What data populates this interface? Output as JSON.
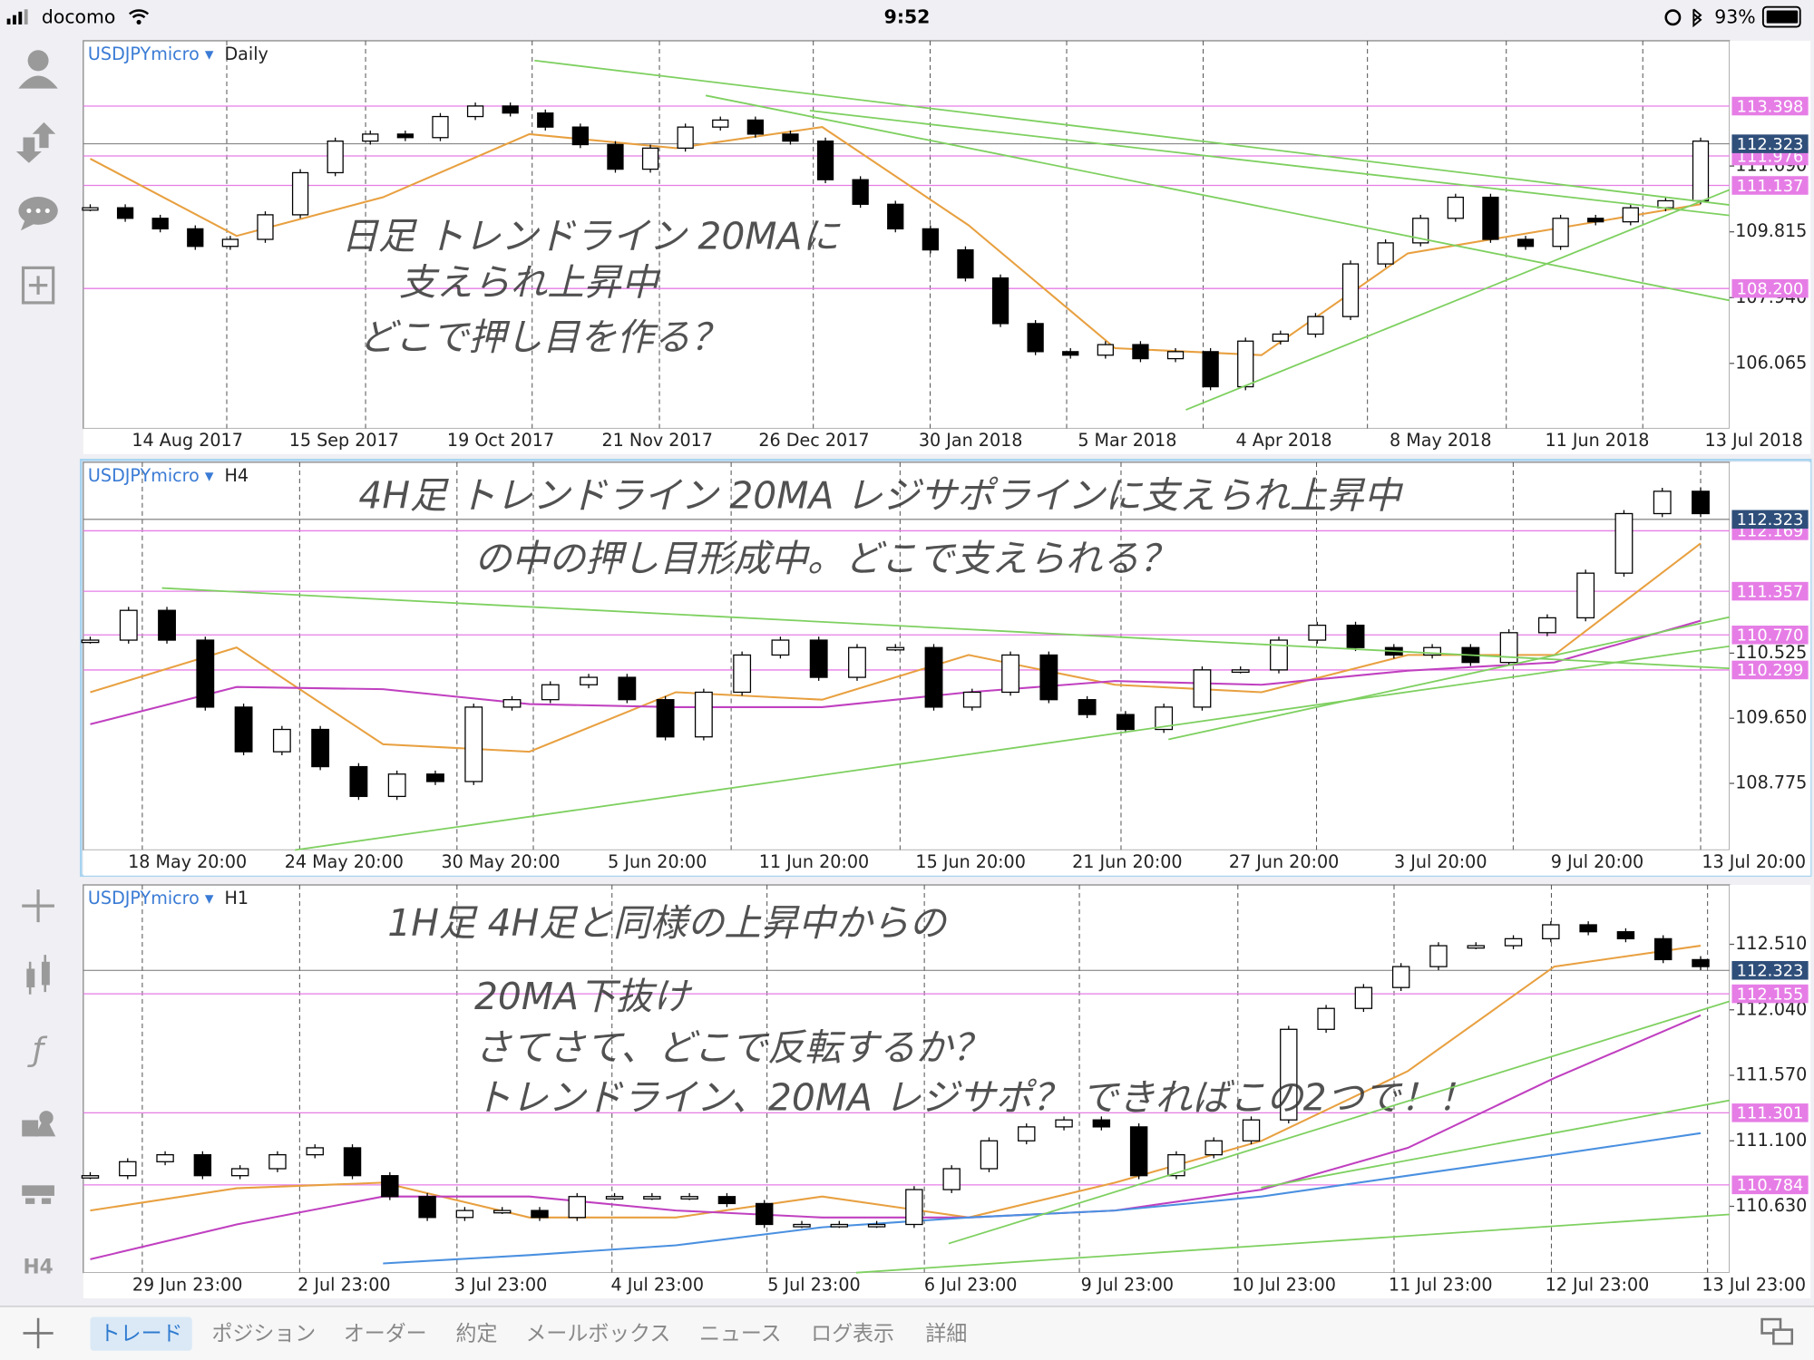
{
  "status_bar": {
    "carrier": "docomo",
    "time": "9:52",
    "battery": "93%"
  },
  "sidebar": {
    "timeframe": "H4"
  },
  "panels": [
    {
      "symbol": "USDJPYmicro ▾",
      "timeframe": "Daily",
      "annotations": [
        "日足 トレンドライン 20MAに",
        "支えられ上昇中",
        "どこで押し目を作る？"
      ],
      "time_labels": [
        "14 Aug 2017",
        "15 Sep 2017",
        "19 Oct 2017",
        "21 Nov 2017",
        "26 Dec 2017",
        "30 Jan 2018",
        "5 Mar 2018",
        "4 Apr 2018",
        "8 May 2018",
        "11 Jun 2018",
        "13 Jul 2018"
      ],
      "ylim": [
        104.21,
        115.26
      ],
      "yticks": [
        106.065,
        {
          "value": 107.94,
          "label": "107.940"
        },
        109.815,
        {
          "value": 111.69,
          "label": "111.690"
        }
      ],
      "levels": [
        113.398,
        111.976,
        111.137,
        {
          "value": 108.2,
          "label": "108.200"
        }
      ],
      "current": 112.323,
      "closes": [
        110.5,
        110.2,
        109.9,
        109.4,
        109.6,
        110.3,
        111.5,
        112.4,
        112.6,
        112.5,
        113.1,
        113.4,
        113.2,
        112.8,
        112.3,
        111.6,
        112.2,
        112.8,
        113.0,
        112.6,
        112.4,
        111.3,
        110.6,
        109.9,
        109.3,
        108.5,
        107.2,
        106.4,
        106.3,
        106.6,
        106.2,
        106.4,
        105.4,
        106.7,
        106.9,
        107.4,
        108.9,
        109.5,
        110.2,
        110.8,
        109.6,
        109.4,
        110.2,
        110.1,
        110.5,
        110.7,
        112.4
      ],
      "moving_averages": [
        {
          "color": "#e8a040",
          "values": [
            111.9,
            109.7,
            110.8,
            112.6,
            112.2,
            112.8,
            110.0,
            106.5,
            106.3,
            109.2,
            109.9,
            110.6
          ]
        }
      ]
    },
    {
      "symbol": "USDJPYmicro ▾",
      "timeframe": "H4",
      "annotations": [
        "4H足 トレンドライン 20MA レジサポラインに支えられ上昇中",
        "の中の押し目形成中。どこで支えられる？"
      ],
      "time_labels": [
        "18 May 20:00",
        "24 May 20:00",
        "30 May 20:00",
        "5 Jun 20:00",
        "11 Jun 20:00",
        "15 Jun 20:00",
        "21 Jun 20:00",
        "27 Jun 20:00",
        "3 Jul 20:00",
        "9 Jul 20:00",
        "13 Jul 20:00"
      ],
      "ylim": [
        107.88,
        113.09
      ],
      "yticks": [
        108.775,
        {
          "value": 109.65,
          "label": "109.650"
        },
        110.525
      ],
      "levels": [
        112.169,
        111.357,
        {
          "value": 110.77,
          "label": "110.770"
        },
        110.299
      ],
      "current": 112.323,
      "closes": [
        110.7,
        111.1,
        110.7,
        109.8,
        109.2,
        109.5,
        109.0,
        108.6,
        108.9,
        108.8,
        109.8,
        109.9,
        110.1,
        110.2,
        109.9,
        109.4,
        110.0,
        110.5,
        110.7,
        110.2,
        110.6,
        110.6,
        109.8,
        110.0,
        110.5,
        109.9,
        109.7,
        109.5,
        109.8,
        110.3,
        110.3,
        110.7,
        110.9,
        110.6,
        110.5,
        110.6,
        110.4,
        110.8,
        111.0,
        111.6,
        112.4,
        112.7,
        112.4
      ],
      "moving_averages": [
        {
          "color": "#e8a040",
          "values": [
            110.0,
            110.6,
            109.3,
            109.2,
            110.0,
            109.9,
            110.5,
            110.1,
            110.0,
            110.5,
            110.5,
            112.0
          ]
        },
        {
          "color": "#c040c0",
          "values": [
            109.57,
            110.07,
            110.04,
            109.84,
            109.8,
            109.8,
            110.0,
            110.15,
            110.1,
            110.29,
            110.4,
            110.96
          ]
        }
      ]
    },
    {
      "symbol": "USDJPYmicro ▾",
      "timeframe": "H1",
      "annotations": [
        "1H足 4H足と同様の上昇中からの",
        "20MA下抜け",
        "さてさて、どこで反転するか？",
        "トレンドライン、20MA レジサポ？ できればこの2つで！！"
      ],
      "time_labels": [
        "29 Jun 23:00",
        "2 Jul 23:00",
        "3 Jul 23:00",
        "4 Jul 23:00",
        "5 Jul 23:00",
        "6 Jul 23:00",
        "9 Jul 23:00",
        "10 Jul 23:00",
        "11 Jul 23:00",
        "12 Jul 23:00",
        "13 Jul 23:00"
      ],
      "ylim": [
        110.154,
        112.936
      ],
      "yticks": [
        {
          "value": 112.51,
          "label": "112.510"
        },
        {
          "value": 112.04,
          "label": "112.040"
        },
        {
          "value": 111.57,
          "label": "111.570"
        },
        {
          "value": 111.1,
          "label": "111.100"
        },
        {
          "value": 110.63,
          "label": "110.630"
        }
      ],
      "levels": [
        112.155,
        111.301,
        110.784
      ],
      "current": 112.323,
      "closes": [
        110.85,
        110.95,
        111.0,
        110.85,
        110.9,
        111.0,
        111.05,
        110.85,
        110.7,
        110.55,
        110.6,
        110.6,
        110.55,
        110.7,
        110.7,
        110.7,
        110.7,
        110.65,
        110.5,
        110.5,
        110.5,
        110.5,
        110.75,
        110.9,
        111.1,
        111.2,
        111.25,
        111.2,
        110.85,
        111.0,
        111.1,
        111.25,
        111.9,
        112.05,
        112.2,
        112.35,
        112.5,
        112.5,
        112.55,
        112.65,
        112.6,
        112.55,
        112.4,
        112.35
      ],
      "moving_averages": [
        {
          "color": "#e8a040",
          "values": [
            110.6,
            110.76,
            110.8,
            110.55,
            110.55,
            110.7,
            110.55,
            110.8,
            111.1,
            111.6,
            112.35,
            112.5
          ]
        },
        {
          "color": "#c040c0",
          "values": [
            110.25,
            110.5,
            110.7,
            110.7,
            110.6,
            110.55,
            110.55,
            110.6,
            110.75,
            111.05,
            111.55,
            112.0
          ]
        },
        {
          "color": "#4a90e0",
          "values": [
            null,
            null,
            110.22,
            110.28,
            110.35,
            110.48,
            110.55,
            110.6,
            110.7,
            110.85,
            111.0,
            111.155
          ]
        }
      ]
    }
  ],
  "tabs": [
    "トレード",
    "ポジション",
    "オーダー",
    "約定",
    "メールボックス",
    "ニュース",
    "ログ表示",
    "詳細"
  ]
}
